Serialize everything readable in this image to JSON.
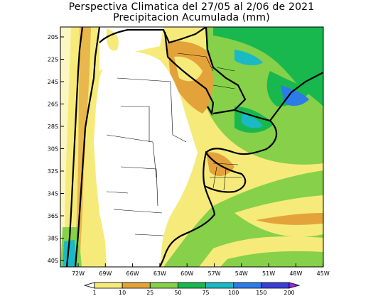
{
  "title": {
    "line1": "Perspectiva Climatica del 27/05 al 2/06 de 2021",
    "line2": "Precipitacion Acumulada (mm)"
  },
  "axes": {
    "lat_labels": [
      "20S",
      "22S",
      "24S",
      "26S",
      "28S",
      "30S",
      "32S",
      "34S",
      "36S",
      "38S",
      "40S"
    ],
    "lon_labels": [
      "72W",
      "69W",
      "66W",
      "63W",
      "60W",
      "57W",
      "54W",
      "51W",
      "48W",
      "45W"
    ]
  },
  "legend": {
    "labels": [
      "1",
      "10",
      "25",
      "50",
      "75",
      "100",
      "150",
      "200"
    ],
    "colors": [
      "#ffffff",
      "#f6eb7a",
      "#e4a33a",
      "#86d04a",
      "#18b84e",
      "#1bb9c4",
      "#2b7be8",
      "#3b3fd8",
      "#9b28d9"
    ]
  }
}
